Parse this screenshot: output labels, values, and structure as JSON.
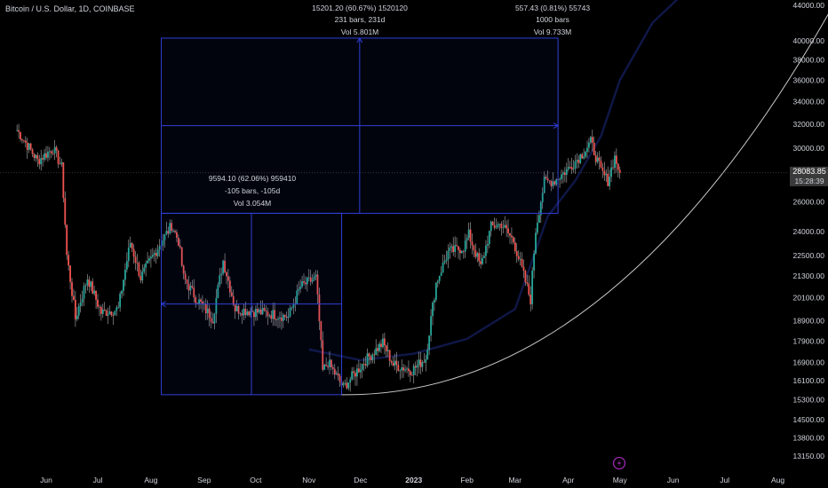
{
  "header": {
    "symbol_title": "Bitcoin / U.S. Dollar, 1D, COINBASE"
  },
  "colors": {
    "background": "#000000",
    "up": "#26a69a",
    "down": "#ef5350",
    "wick": "#b0b0b0",
    "measure": "#2f3fd6",
    "curve": "#c8c8c8",
    "text": "#d1d4dc",
    "price_tag": "#3a3a3a",
    "lightning": "#9c27b0"
  },
  "measure_labels": {
    "large": {
      "line1": "15201.20 (60.67%) 1520120",
      "line2": "231 bars, 231d",
      "line3": "Vol 5.801M"
    },
    "right": {
      "line1": "557.43 (0.81%) 55743",
      "line2": "1000 bars",
      "line3": "Vol 9.733M"
    },
    "small": {
      "line1": "9594.10 (62.06%) 959410",
      "line2": "-105 bars, -105d",
      "line3": "Vol 3.054M"
    }
  },
  "price_tag": {
    "price": "28083.85",
    "countdown": "15:28:39"
  },
  "chart_data": {
    "type": "candlestick",
    "y_axis": {
      "scale": "log",
      "ticks": [
        "44000.00",
        "40000.00",
        "38000.00",
        "36000.00",
        "34000.00",
        "32000.00",
        "30000.00",
        "26000.00",
        "24000.00",
        "22500.00",
        "21300.00",
        "20100.00",
        "18900.00",
        "17900.00",
        "16900.00",
        "16100.00",
        "15300.00",
        "14500.00",
        "13800.00",
        "13150.00"
      ]
    },
    "x_axis": {
      "ticks": [
        "Jun",
        "Jul",
        "Aug",
        "Sep",
        "Oct",
        "Nov",
        "Dec",
        "2023",
        "Feb",
        "Mar",
        "Apr",
        "May",
        "Jun",
        "Jul",
        "Aug"
      ],
      "bold_ticks": [
        "2023"
      ]
    },
    "current_price": 28083.85,
    "price_anchors": [
      {
        "date": "May 15",
        "close": 31500
      },
      {
        "date": "May 27",
        "close": 29000
      },
      {
        "date": "Jun 5",
        "close": 30000
      },
      {
        "date": "Jun 10",
        "close": 28500
      },
      {
        "date": "Jun 13",
        "close": 22500
      },
      {
        "date": "Jun 18",
        "close": 19000
      },
      {
        "date": "Jun 25",
        "close": 21200
      },
      {
        "date": "Jul 3",
        "close": 19300
      },
      {
        "date": "Jul 13",
        "close": 19500
      },
      {
        "date": "Jul 20",
        "close": 23300
      },
      {
        "date": "Jul 26",
        "close": 21200
      },
      {
        "date": "Aug 4",
        "close": 22800
      },
      {
        "date": "Aug 13",
        "close": 24400
      },
      {
        "date": "Aug 17",
        "close": 23400
      },
      {
        "date": "Aug 20",
        "close": 21200
      },
      {
        "date": "Aug 27",
        "close": 20100
      },
      {
        "date": "Sep 6",
        "close": 19000
      },
      {
        "date": "Sep 12",
        "close": 22200
      },
      {
        "date": "Sep 19",
        "close": 19500
      },
      {
        "date": "Sep 28",
        "close": 19400
      },
      {
        "date": "Oct 13",
        "close": 19200
      },
      {
        "date": "Oct 20",
        "close": 19100
      },
      {
        "date": "Oct 27",
        "close": 20700
      },
      {
        "date": "Nov 5",
        "close": 21200
      },
      {
        "date": "Nov 9",
        "close": 16500
      },
      {
        "date": "Nov 12",
        "close": 16900
      },
      {
        "date": "Nov 21",
        "close": 15800
      },
      {
        "date": "Dec 4",
        "close": 17000
      },
      {
        "date": "Dec 14",
        "close": 17800
      },
      {
        "date": "Dec 20",
        "close": 16800
      },
      {
        "date": "Dec 31",
        "close": 16550
      },
      {
        "date": "Jan 8",
        "close": 17100
      },
      {
        "date": "Jan 14",
        "close": 20900
      },
      {
        "date": "Jan 21",
        "close": 22700
      },
      {
        "date": "Jan 30",
        "close": 23000
      },
      {
        "date": "Feb 2",
        "close": 23800
      },
      {
        "date": "Feb 9",
        "close": 21800
      },
      {
        "date": "Feb 15",
        "close": 24300
      },
      {
        "date": "Feb 21",
        "close": 24500
      },
      {
        "date": "Feb 28",
        "close": 23400
      },
      {
        "date": "Mar 9",
        "close": 20300
      },
      {
        "date": "Mar 10",
        "close": 20000
      },
      {
        "date": "Mar 13",
        "close": 24100
      },
      {
        "date": "Mar 18",
        "close": 27400
      },
      {
        "date": "Mar 24",
        "close": 27500
      },
      {
        "date": "Apr 1",
        "close": 28400
      },
      {
        "date": "Apr 10",
        "close": 29700
      },
      {
        "date": "Apr 14",
        "close": 30500
      },
      {
        "date": "Apr 20",
        "close": 28200
      },
      {
        "date": "Apr 24",
        "close": 27500
      },
      {
        "date": "Apr 28",
        "close": 29300
      },
      {
        "date": "May 1",
        "close": 28083.85
      }
    ],
    "shadow_series": {
      "name": "",
      "points": [
        {
          "date": "Nov 1",
          "value": 17500
        },
        {
          "date": "Dec 1",
          "value": 17000
        },
        {
          "date": "Jan 1",
          "value": 17300
        },
        {
          "date": "Feb 1",
          "value": 18000
        },
        {
          "date": "Mar 1",
          "value": 19500
        },
        {
          "date": "Mar 20",
          "value": 25000
        },
        {
          "date": "Apr 5",
          "value": 27500
        },
        {
          "date": "Apr 20",
          "value": 31000
        },
        {
          "date": "May 1",
          "value": 36000
        },
        {
          "date": "May 20",
          "value": 42000
        },
        {
          "date": "Jun 10",
          "value": 46000
        }
      ]
    },
    "measure_boxes": [
      {
        "name": "large",
        "from": {
          "date": "Aug 7",
          "price": 25200
        },
        "to": {
          "date": "Mar 26",
          "price": 40300
        }
      },
      {
        "name": "small",
        "from": {
          "date": "Aug 7",
          "price": 15500
        },
        "to": {
          "date": "Nov 20",
          "price": 25200
        }
      }
    ],
    "curve": {
      "from": {
        "date": "Nov 20",
        "price": 15500
      },
      "to": {
        "date": "Aug 31",
        "price": 43200
      }
    }
  }
}
